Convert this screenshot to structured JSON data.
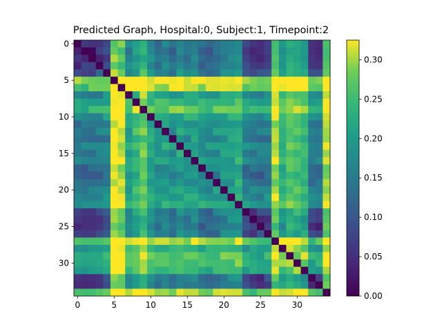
{
  "chart_data": {
    "type": "heatmap",
    "title": "Predicted Graph, Hospital:0, Subject:1, Timepoint:2",
    "xlabel": "",
    "ylabel": "",
    "n": 35,
    "x_ticks": [
      0,
      5,
      10,
      15,
      20,
      25,
      30
    ],
    "y_ticks": [
      0,
      5,
      10,
      15,
      20,
      25,
      30
    ],
    "colorbar": {
      "min": 0.0,
      "max": 0.325,
      "ticks": [
        "0.00",
        "0.05",
        "0.10",
        "0.15",
        "0.20",
        "0.25",
        "0.30"
      ],
      "colormap": "viridis"
    },
    "node_profile": [
      0.04,
      0.02,
      0.03,
      0.05,
      0.09,
      0.32,
      0.3,
      0.18,
      0.22,
      0.26,
      0.19,
      0.15,
      0.17,
      0.14,
      0.18,
      0.16,
      0.18,
      0.13,
      0.12,
      0.14,
      0.17,
      0.18,
      0.2,
      0.07,
      0.05,
      0.04,
      0.07,
      0.29,
      0.21,
      0.25,
      0.24,
      0.22,
      0.05,
      0.04,
      0.29
    ],
    "grid": false
  }
}
